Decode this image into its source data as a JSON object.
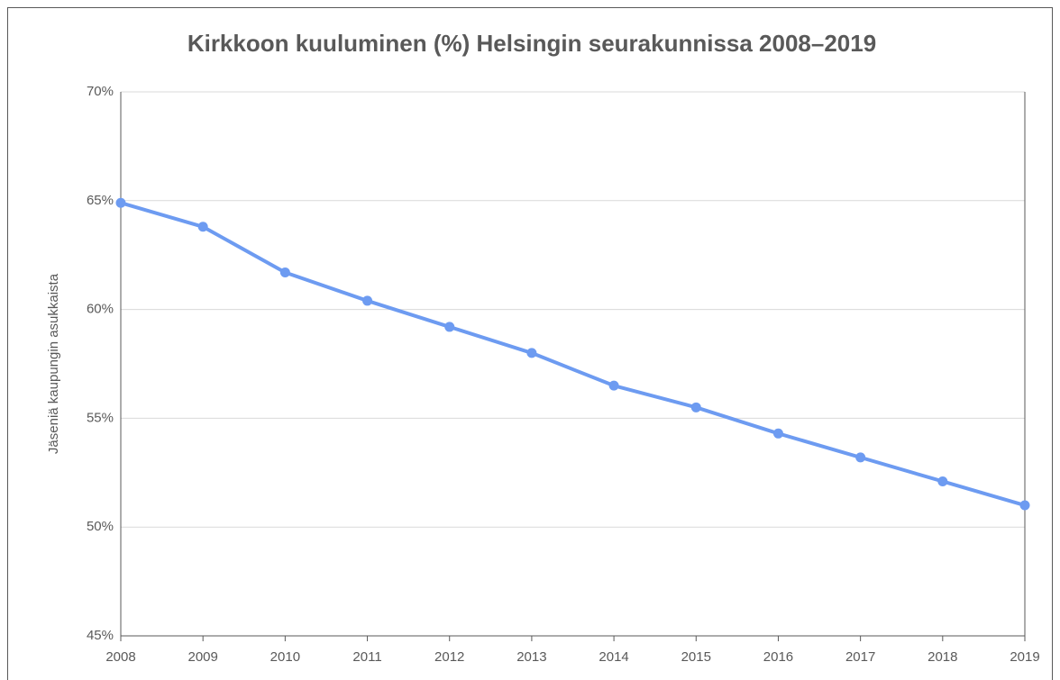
{
  "chart_data": {
    "type": "line",
    "title": "Kirkkoon kuuluminen (%) Helsingin seurakunnissa 2008–2019",
    "y_label": "Jäseniä kaupungin asukkaista",
    "x": [
      2008,
      2009,
      2010,
      2011,
      2012,
      2013,
      2014,
      2015,
      2016,
      2017,
      2018,
      2019
    ],
    "xlim": [
      2008,
      2019
    ],
    "xticks": [
      2008,
      2009,
      2010,
      2011,
      2012,
      2013,
      2014,
      2015,
      2016,
      2017,
      2018,
      2019
    ],
    "series": [
      {
        "color": "#6d9bf1",
        "values": [
          64.9,
          63.8,
          61.7,
          60.4,
          59.2,
          58.0,
          56.5,
          55.5,
          54.3,
          53.2,
          52.1,
          51.0
        ]
      }
    ],
    "ylim": [
      45,
      70
    ],
    "yticks": [
      {
        "value": 45,
        "label": "45%"
      },
      {
        "value": 50,
        "label": "50%"
      },
      {
        "value": 55,
        "label": "55%"
      },
      {
        "value": 60,
        "label": "60%"
      },
      {
        "value": 65,
        "label": "65%"
      },
      {
        "value": 70,
        "label": "70%"
      }
    ],
    "grid": true
  }
}
